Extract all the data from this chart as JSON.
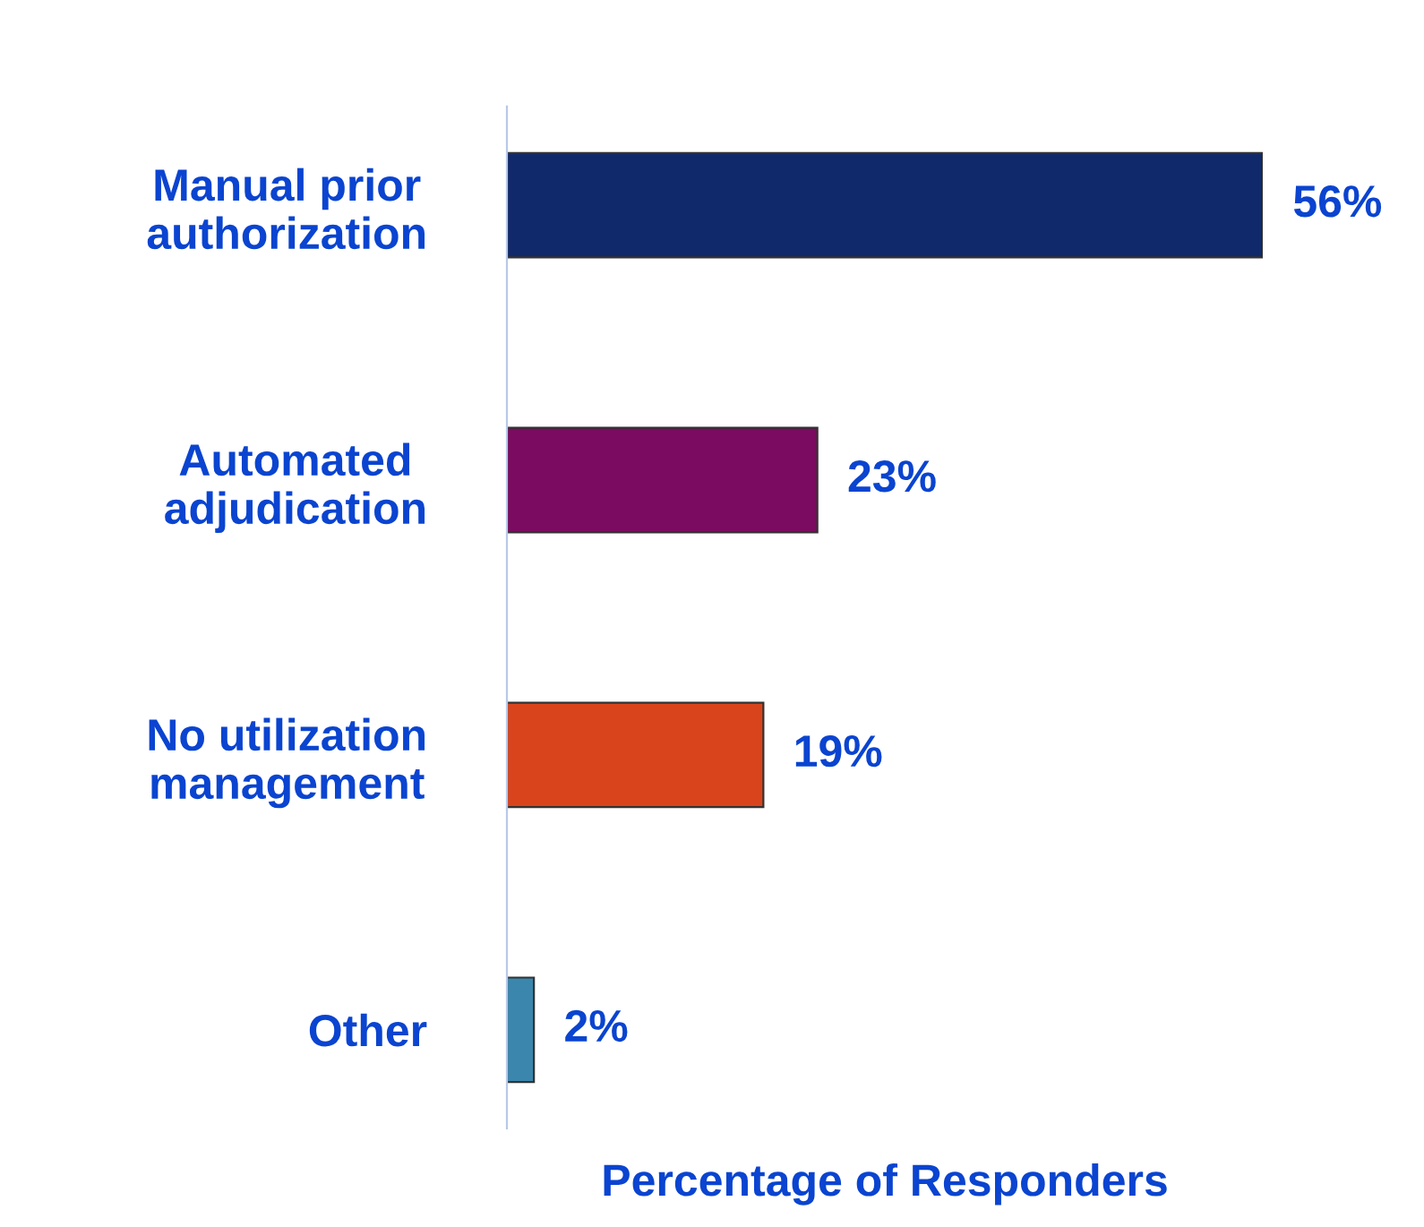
{
  "chart_data": {
    "type": "bar",
    "orientation": "horizontal",
    "categories": [
      "Manual prior\nauthorization",
      "Automated\nadjudication",
      "No utilization\nmanagement",
      "Other"
    ],
    "values": [
      56,
      23,
      19,
      2
    ],
    "colors": [
      "#10296a",
      "#7b0b60",
      "#d9441c",
      "#3a86ad"
    ],
    "value_labels": [
      "56%",
      "23%",
      "19%",
      "2%"
    ],
    "xlabel": "Percentage of Responders",
    "tick_labels": "y",
    "grid": false,
    "legend": false
  }
}
